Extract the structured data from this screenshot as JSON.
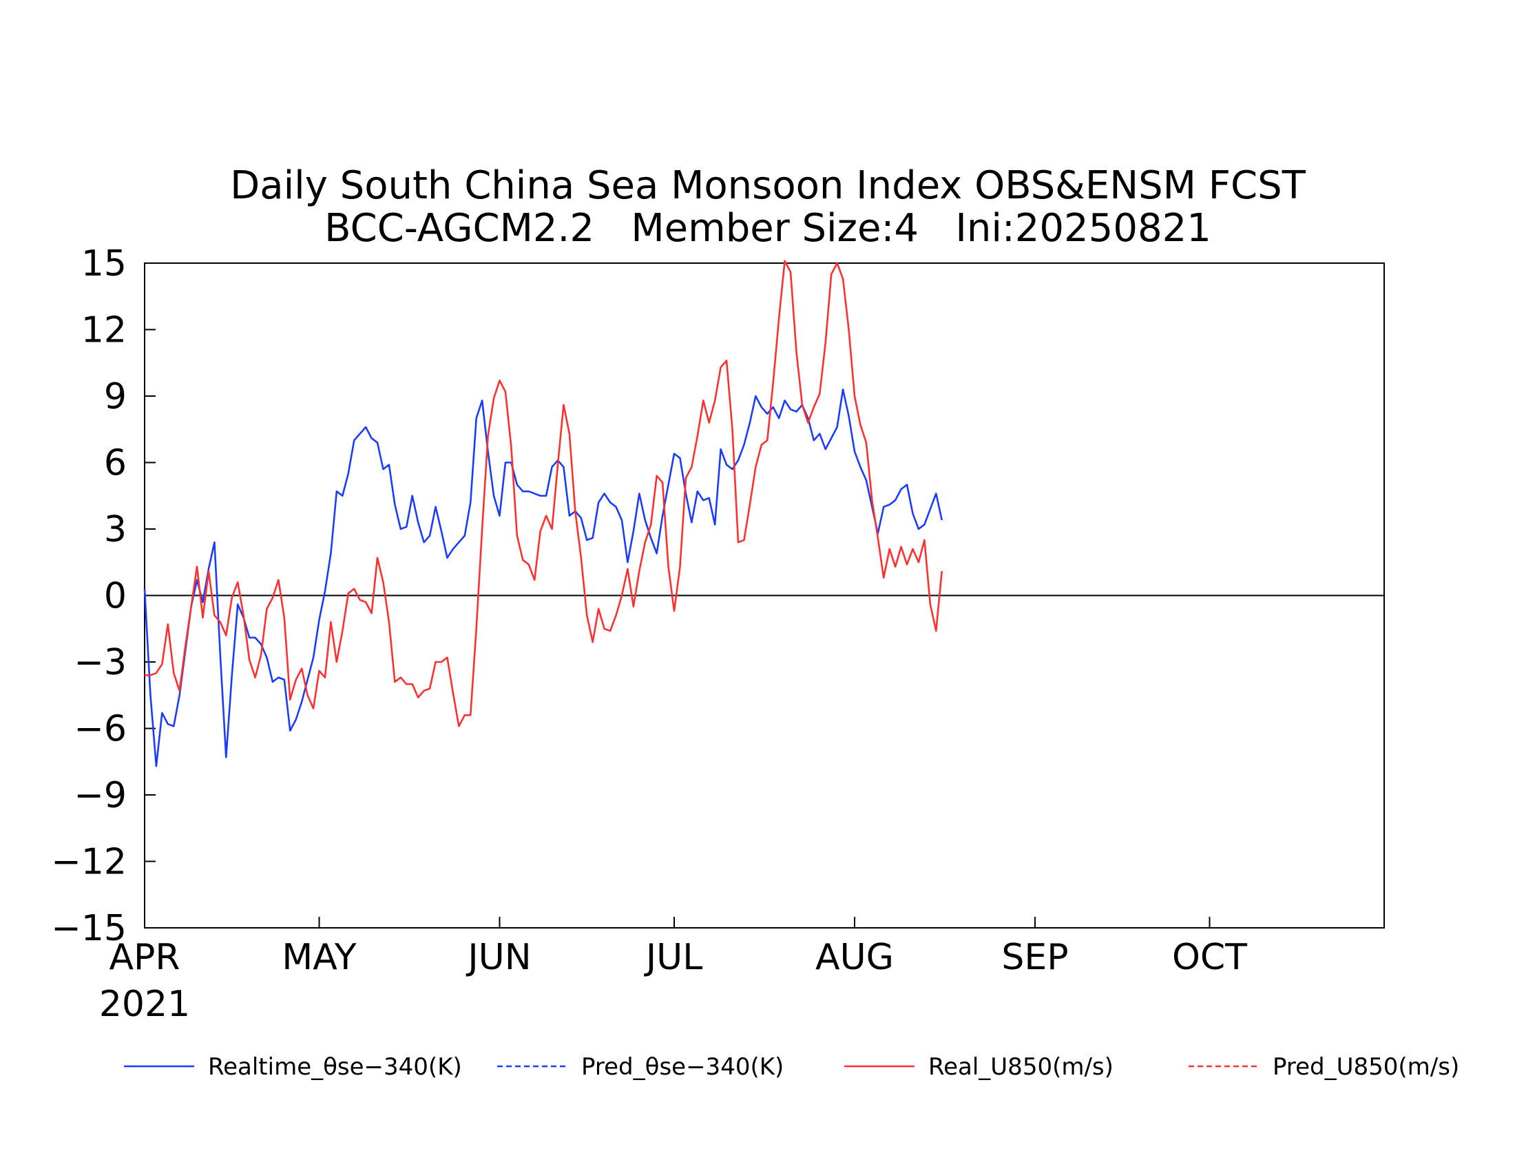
{
  "chart_data": {
    "type": "line",
    "title": [
      "Daily South China Sea Monsoon Index OBS&ENSM FCST",
      "BCC-AGCM2.2   Member Size:4   Ini:20250821"
    ],
    "x_range": [
      "2021-04-01",
      "2021-10-31"
    ],
    "ylim": [
      -15,
      15
    ],
    "yticks": [
      "15",
      "12",
      "9",
      "6",
      "3",
      "0",
      "−3",
      "−6",
      "−9",
      "−12",
      "−15"
    ],
    "ytick_values": [
      15,
      12,
      9,
      6,
      3,
      0,
      -3,
      -6,
      -9,
      -12,
      -15
    ],
    "xticks": [
      {
        "label": "APR",
        "date": "2021-04-01",
        "sublabel": "2021"
      },
      {
        "label": "MAY",
        "date": "2021-05-01"
      },
      {
        "label": "JUN",
        "date": "2021-06-01"
      },
      {
        "label": "JUL",
        "date": "2021-07-01"
      },
      {
        "label": "AUG",
        "date": "2021-08-01"
      },
      {
        "label": "SEP",
        "date": "2021-09-01"
      },
      {
        "label": "OCT",
        "date": "2021-10-01"
      }
    ],
    "zero_line": true,
    "grid": false,
    "legend_position": "bottom",
    "series": [
      {
        "name": "Realtime_θse−340(K)",
        "color": "#1a3cff",
        "style": "solid",
        "start_date": "2021-04-01",
        "values": [
          0.3,
          -4.5,
          -7.7,
          -5.3,
          -5.8,
          -5.9,
          -4.5,
          -2.5,
          -0.5,
          0.7,
          -0.3,
          1.2,
          2.4,
          -2.7,
          -7.3,
          -3.6,
          -0.4,
          -1.0,
          -1.9,
          -1.9,
          -2.2,
          -2.8,
          -3.9,
          -3.7,
          -3.8,
          -6.1,
          -5.6,
          -4.8,
          -3.8,
          -2.8,
          -1.1,
          0.2,
          1.9,
          4.7,
          4.5,
          5.5,
          7.0,
          7.3,
          7.6,
          7.1,
          6.9,
          5.7,
          5.9,
          4.1,
          3.0,
          3.1,
          4.5,
          3.3,
          2.4,
          2.7,
          4.0,
          2.9,
          1.7,
          2.1,
          2.4,
          2.7,
          4.2,
          8.0,
          8.8,
          6.5,
          4.5,
          3.6,
          6.0,
          6.0,
          5.0,
          4.7,
          4.7,
          4.6,
          4.5,
          4.5,
          5.8,
          6.1,
          5.8,
          3.6,
          3.8,
          3.5,
          2.5,
          2.6,
          4.2,
          4.6,
          4.2,
          4.0,
          3.4,
          1.5,
          2.9,
          4.6,
          3.4,
          2.6,
          1.9,
          3.6,
          5.0,
          6.4,
          6.2,
          4.6,
          3.3,
          4.7,
          4.3,
          4.4,
          3.2,
          6.6,
          5.9,
          5.7,
          6.1,
          6.8,
          7.8,
          9.0,
          8.5,
          8.2,
          8.5,
          8.0,
          8.8,
          8.4,
          8.3,
          8.6,
          8.0,
          7.0,
          7.3,
          6.6,
          7.1,
          7.6,
          9.3,
          8.1,
          6.5,
          5.8,
          5.2,
          4.0,
          2.8,
          4.0,
          4.1,
          4.3,
          4.8,
          5.0,
          3.7,
          3.0,
          3.2,
          3.9,
          4.6,
          3.4
        ]
      },
      {
        "name": "Pred_θse−340(K)",
        "color": "#1a3cff",
        "style": "dashed",
        "start_date": "2021-08-18",
        "values": []
      },
      {
        "name": "Real_U850(m/s)",
        "color": "#ff3030",
        "style": "solid",
        "start_date": "2021-04-01",
        "values": [
          -3.6,
          -3.6,
          -3.5,
          -3.1,
          -1.3,
          -3.5,
          -4.3,
          -2.3,
          -0.5,
          1.3,
          -1.0,
          1.1,
          -0.9,
          -1.2,
          -1.8,
          -0.1,
          0.6,
          -0.9,
          -2.9,
          -3.7,
          -2.7,
          -0.6,
          -0.1,
          0.7,
          -1.0,
          -4.7,
          -3.8,
          -3.3,
          -4.5,
          -5.1,
          -3.4,
          -3.7,
          -1.2,
          -3.0,
          -1.6,
          0.1,
          0.3,
          -0.2,
          -0.3,
          -0.8,
          1.7,
          0.6,
          -1.2,
          -3.9,
          -3.7,
          -4.0,
          -4.0,
          -4.6,
          -4.3,
          -4.2,
          -3.0,
          -3.0,
          -2.8,
          -4.4,
          -5.9,
          -5.4,
          -5.4,
          -1.5,
          3.0,
          7.2,
          8.9,
          9.7,
          9.2,
          6.7,
          2.7,
          1.6,
          1.4,
          0.7,
          2.9,
          3.6,
          3.0,
          5.9,
          8.6,
          7.3,
          3.8,
          1.7,
          -0.9,
          -2.1,
          -0.6,
          -1.5,
          -1.6,
          -0.9,
          0.0,
          1.2,
          -0.5,
          1.1,
          2.4,
          3.2,
          5.4,
          5.1,
          1.3,
          -0.7,
          1.3,
          5.3,
          5.8,
          7.2,
          8.8,
          7.8,
          8.8,
          10.3,
          10.6,
          7.5,
          2.4,
          2.5,
          4.1,
          5.8,
          6.8,
          7.0,
          9.6,
          12.5,
          15.1,
          14.6,
          11.0,
          8.6,
          7.8,
          8.5,
          9.1,
          11.4,
          14.5,
          15.0,
          14.3,
          12.0,
          9.0,
          7.7,
          6.9,
          4.3,
          2.6,
          0.8,
          2.1,
          1.3,
          2.2,
          1.4,
          2.1,
          1.5,
          2.5,
          -0.4,
          -1.6,
          1.1
        ]
      },
      {
        "name": "Pred_U850(m/s)",
        "color": "#ff3030",
        "style": "dashed",
        "start_date": "2021-08-18",
        "values": []
      }
    ]
  }
}
